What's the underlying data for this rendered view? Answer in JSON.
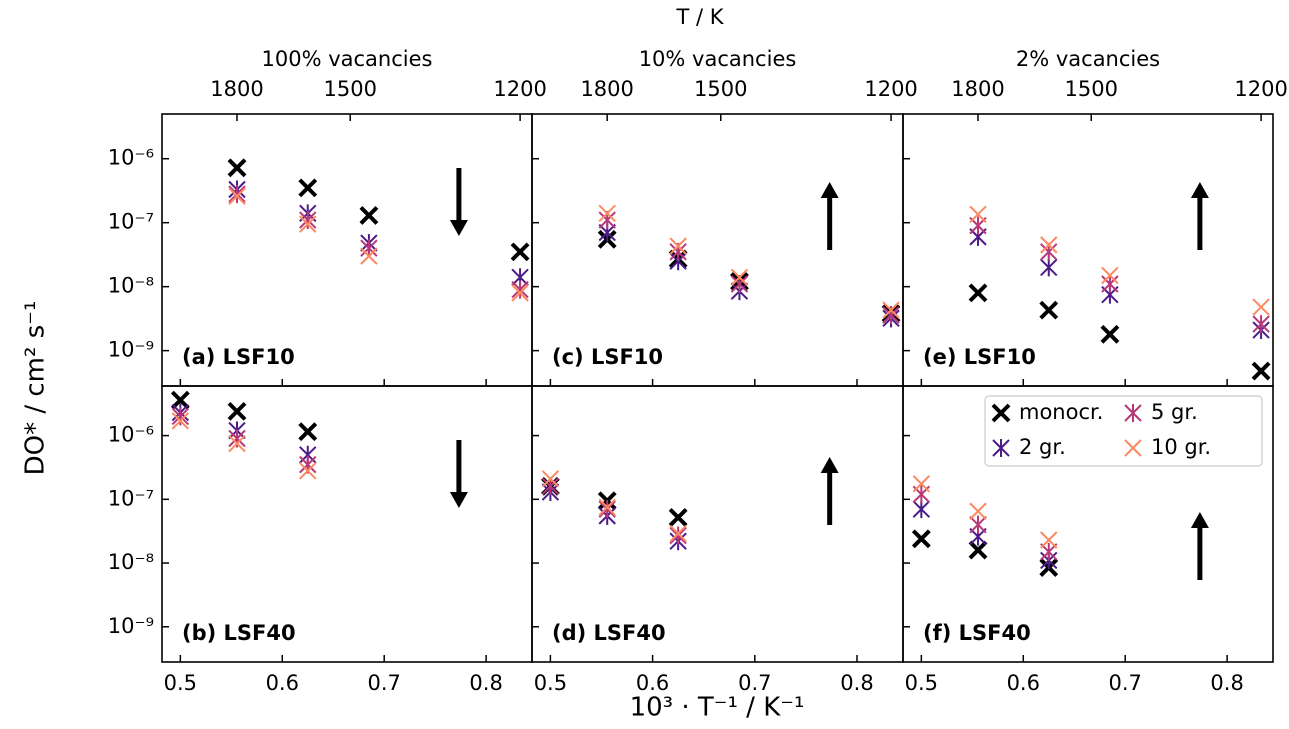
{
  "figure": {
    "top_label": "T / K",
    "xlabel": "10³ · T⁻¹ / K⁻¹",
    "ylabel": "DO* / cm² s⁻¹",
    "column_titles": [
      "100% vacancies",
      "10% vacancies",
      "2% vacancies"
    ],
    "top_ticks": [
      1800,
      1500,
      1200
    ],
    "series": [
      {
        "name": "monocr.",
        "color": "#000000"
      },
      {
        "name": "2 gr.",
        "color": "#4b1b8a"
      },
      {
        "name": "5 gr.",
        "color": "#b73779"
      },
      {
        "name": "10 gr.",
        "color": "#fc8961"
      }
    ]
  },
  "chart_data": [
    {
      "type": "scatter",
      "title": "(a) LSF10",
      "arrow": "down",
      "x": [
        0.5556,
        0.625,
        0.685,
        0.8333
      ],
      "series": [
        {
          "values": [
            7.2e-07,
            3.5e-07,
            1.3e-07,
            3.5e-08
          ]
        },
        {
          "values": [
            3.3e-07,
            1.4e-07,
            4.8e-08,
            1.4e-08
          ]
        },
        {
          "values": [
            2.8e-07,
            1.1e-07,
            4e-08,
            9e-09
          ]
        },
        {
          "values": [
            2.6e-07,
            9.5e-08,
            3e-08,
            8e-09
          ]
        }
      ],
      "xlim": [
        0.482,
        0.845
      ],
      "ylim": [
        2.8e-10,
        5e-06
      ],
      "log_y": true,
      "xticks": [
        0.5,
        0.6,
        0.7,
        0.8
      ],
      "yticks": [
        {
          "value": 1e-09,
          "label": "10⁻⁹"
        },
        {
          "value": 1e-08,
          "label": "10⁻⁸"
        },
        {
          "value": 1e-07,
          "label": "10⁻⁷"
        },
        {
          "value": 1e-06,
          "label": "10⁻⁶"
        }
      ]
    },
    {
      "type": "scatter",
      "title": "(b) LSF40",
      "arrow": "down",
      "x": [
        0.5,
        0.5556,
        0.625
      ],
      "series": [
        {
          "values": [
            3.6e-06,
            2.4e-06,
            1.15e-06
          ]
        },
        {
          "values": [
            2.3e-06,
            1.2e-06,
            5e-07
          ]
        },
        {
          "values": [
            2e-06,
            9e-07,
            3.5e-07
          ]
        },
        {
          "values": [
            1.7e-06,
            7.5e-07,
            2.8e-07
          ]
        }
      ],
      "xlim": [
        0.482,
        0.845
      ],
      "ylim": [
        2.8e-10,
        6e-06
      ],
      "log_y": true,
      "xticks": [
        0.5,
        0.6,
        0.7,
        0.8
      ],
      "yticks": [
        {
          "value": 1e-09,
          "label": "10⁻⁹"
        },
        {
          "value": 1e-08,
          "label": "10⁻⁸"
        },
        {
          "value": 1e-07,
          "label": "10⁻⁷"
        },
        {
          "value": 1e-06,
          "label": "10⁻⁶"
        }
      ]
    },
    {
      "type": "scatter",
      "title": "(c) LSF10",
      "arrow": "up",
      "x": [
        0.5556,
        0.625,
        0.685,
        0.8333
      ],
      "series": [
        {
          "values": [
            5.5e-08,
            2.7e-08,
            1.2e-08,
            3.8e-09
          ]
        },
        {
          "values": [
            7e-08,
            2.5e-08,
            8.5e-09,
            3.2e-09
          ]
        },
        {
          "values": [
            1.1e-07,
            3.5e-08,
            1.1e-08,
            3.6e-09
          ]
        },
        {
          "values": [
            1.4e-07,
            4.3e-08,
            1.4e-08,
            4.3e-09
          ]
        }
      ],
      "xlim": [
        0.482,
        0.845
      ],
      "ylim": [
        2.8e-10,
        5e-06
      ],
      "log_y": true,
      "xticks": [
        0.5,
        0.6,
        0.7,
        0.8
      ],
      "yticks": [
        {
          "value": 1e-09,
          "label": "10⁻⁹"
        },
        {
          "value": 1e-08,
          "label": "10⁻⁸"
        },
        {
          "value": 1e-07,
          "label": "10⁻⁷"
        },
        {
          "value": 1e-06,
          "label": "10⁻⁶"
        }
      ]
    },
    {
      "type": "scatter",
      "title": "(d) LSF40",
      "arrow": "up",
      "x": [
        0.5,
        0.5556,
        0.625
      ],
      "series": [
        {
          "values": [
            1.6e-07,
            9.5e-08,
            5.2e-08
          ]
        },
        {
          "values": [
            1.3e-07,
            5.5e-08,
            2.2e-08
          ]
        },
        {
          "values": [
            1.6e-07,
            7e-08,
            2.7e-08
          ]
        },
        {
          "values": [
            2.1e-07,
            7.5e-08,
            2.9e-08
          ]
        }
      ],
      "xlim": [
        0.482,
        0.845
      ],
      "ylim": [
        2.8e-10,
        6e-06
      ],
      "log_y": true,
      "xticks": [
        0.5,
        0.6,
        0.7,
        0.8
      ],
      "yticks": [
        {
          "value": 1e-09,
          "label": "10⁻⁹"
        },
        {
          "value": 1e-08,
          "label": "10⁻⁸"
        },
        {
          "value": 1e-07,
          "label": "10⁻⁷"
        },
        {
          "value": 1e-06,
          "label": "10⁻⁶"
        }
      ]
    },
    {
      "type": "scatter",
      "title": "(e) LSF10",
      "arrow": "up",
      "x": [
        0.5556,
        0.625,
        0.685,
        0.8333
      ],
      "series": [
        {
          "values": [
            8e-09,
            4.3e-09,
            1.8e-09,
            4.8e-10
          ]
        },
        {
          "values": [
            6e-08,
            2e-08,
            7.5e-09,
            2.1e-09
          ]
        },
        {
          "values": [
            9e-08,
            3.5e-08,
            1.1e-08,
            2.6e-09
          ]
        },
        {
          "values": [
            1.35e-07,
            4.5e-08,
            1.5e-08,
            4.8e-09
          ]
        }
      ],
      "xlim": [
        0.482,
        0.845
      ],
      "ylim": [
        2.8e-10,
        5e-06
      ],
      "log_y": true,
      "xticks": [
        0.5,
        0.6,
        0.7,
        0.8
      ],
      "yticks": [
        {
          "value": 1e-09,
          "label": "10⁻⁹"
        },
        {
          "value": 1e-08,
          "label": "10⁻⁸"
        },
        {
          "value": 1e-07,
          "label": "10⁻⁷"
        },
        {
          "value": 1e-06,
          "label": "10⁻⁶"
        }
      ]
    },
    {
      "type": "scatter",
      "title": "(f) LSF40",
      "arrow": "up",
      "legend": "upper right",
      "x": [
        0.5,
        0.5556,
        0.625
      ],
      "series": [
        {
          "values": [
            2.4e-08,
            1.6e-08,
            8.5e-09
          ]
        },
        {
          "values": [
            7e-08,
            2.6e-08,
            1.1e-08
          ]
        },
        {
          "values": [
            1.2e-07,
            4e-08,
            1.5e-08
          ]
        },
        {
          "values": [
            1.75e-07,
            6.5e-08,
            2.3e-08
          ]
        }
      ],
      "xlim": [
        0.482,
        0.845
      ],
      "ylim": [
        2.8e-10,
        6e-06
      ],
      "log_y": true,
      "xticks": [
        0.5,
        0.6,
        0.7,
        0.8
      ],
      "yticks": [
        {
          "value": 1e-09,
          "label": "10⁻⁹"
        },
        {
          "value": 1e-08,
          "label": "10⁻⁸"
        },
        {
          "value": 1e-07,
          "label": "10⁻⁷"
        },
        {
          "value": 1e-06,
          "label": "10⁻⁶"
        }
      ]
    }
  ]
}
